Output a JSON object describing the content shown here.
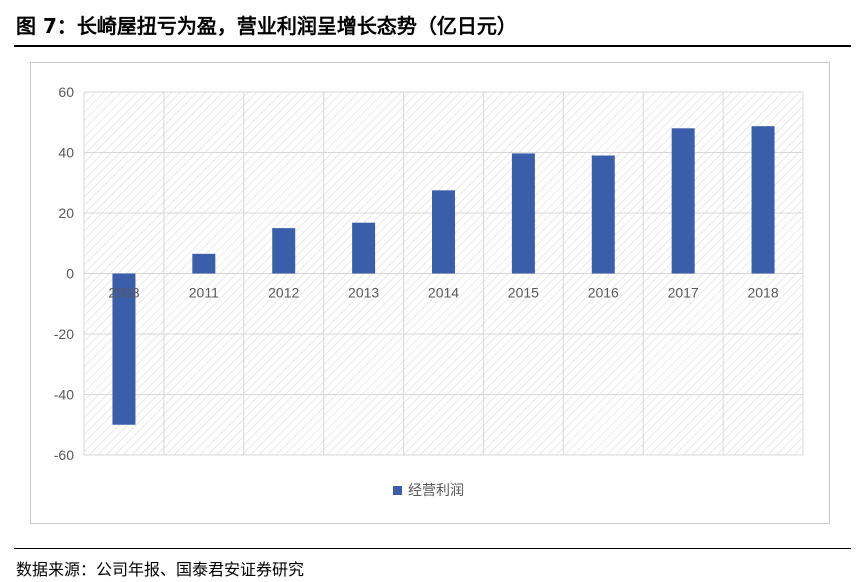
{
  "title": "图 7：长崎屋扭亏为盈，营业利润呈增长态势（亿日元）",
  "source": "数据来源：公司年报、国泰君安证券研究",
  "colors": {
    "bar": "#3B5EAB",
    "grid": "#d9d9d9",
    "axis_text": "#595959"
  },
  "chart_data": {
    "type": "bar",
    "categories": [
      "2008",
      "2011",
      "2012",
      "2013",
      "2014",
      "2015",
      "2016",
      "2017",
      "2018"
    ],
    "series": [
      {
        "name": "经营利润",
        "values": [
          -50,
          6.5,
          15,
          16.8,
          27.5,
          39.7,
          39,
          48,
          48.7
        ]
      }
    ],
    "ylim": [
      -60,
      60
    ],
    "yticks": [
      60,
      40,
      20,
      0,
      -20,
      -40,
      -60
    ],
    "grid": true,
    "legend": "bottom"
  }
}
